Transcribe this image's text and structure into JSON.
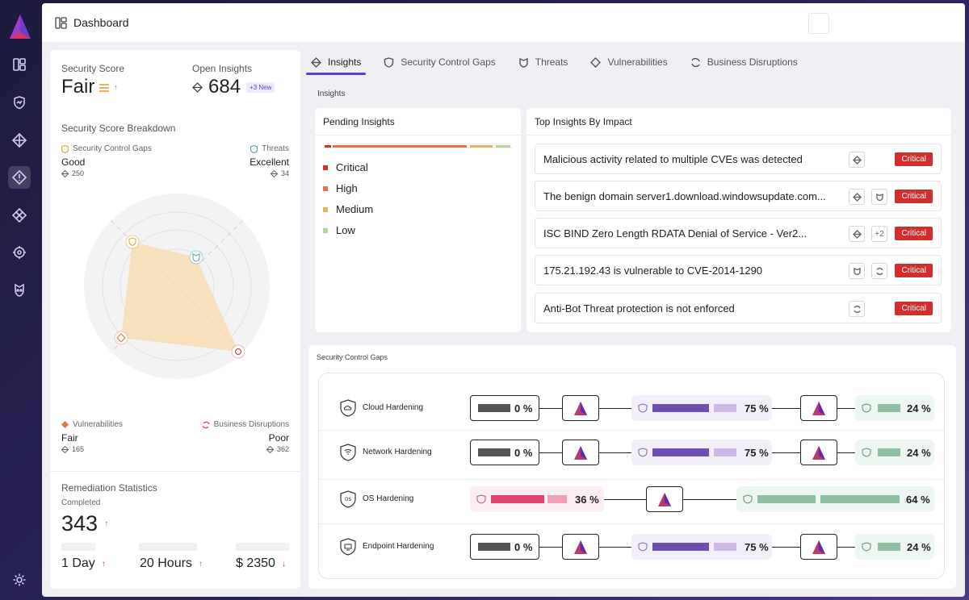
{
  "header": {
    "title": "Dashboard"
  },
  "colors": {
    "accent": "#5b3fd6",
    "critical": "#d12e2e",
    "high": "#e0764a",
    "medium": "#e3b25d",
    "low": "#b7d39c",
    "purple": "#6f4fb3",
    "green": "#8fc0a3",
    "pink": "#e0436f"
  },
  "score": {
    "label": "Security Score",
    "value": "Fair",
    "open_label": "Open Insights",
    "open_value": "684",
    "new_badge": "+3 New",
    "breakdown_title": "Security Score Breakdown"
  },
  "breakdown": [
    {
      "category": "Security Control Gaps",
      "rating": "Good",
      "count": "250",
      "icon": "shield-icon"
    },
    {
      "category": "Threats",
      "rating": "Excellent",
      "count": "34",
      "icon": "alien-icon"
    },
    {
      "category": "Vulnerabilities",
      "rating": "Fair",
      "count": "165",
      "icon": "diamond-icon"
    },
    {
      "category": "Business Disruptions",
      "rating": "Poor",
      "count": "362",
      "icon": "disruption-icon"
    }
  ],
  "remediation": {
    "title": "Remediation Statistics",
    "completed_label": "Completed",
    "completed": "343",
    "day": "1 Day",
    "hours": "20 Hours",
    "cost": "$ 2350"
  },
  "tabs": [
    "Insights",
    "Security Control Gaps",
    "Threats",
    "Vulnerabilities",
    "Business Disruptions"
  ],
  "insights_section": "Insights",
  "pending": {
    "title": "Pending Insights",
    "levels": [
      "Critical",
      "High",
      "Medium",
      "Low"
    ]
  },
  "top": {
    "title": "Top Insights By Impact",
    "rows": [
      {
        "text": "Malicious activity related to multiple CVEs was detected",
        "badge": "Critical"
      },
      {
        "text": "The benign domain server1.download.windowsupdate.com...",
        "badge": "Critical"
      },
      {
        "text": "ISC BIND Zero Length RDATA Denial of Service - Ver2...",
        "badge": "Critical",
        "extra": "+2"
      },
      {
        "text": "175.21.192.43 is vulnerable to CVE-2014-1290",
        "badge": "Critical"
      },
      {
        "text": "Anti-Bot Threat protection is not enforced",
        "badge": "Critical"
      }
    ]
  },
  "gaps": {
    "title": "Security Control Gaps",
    "rows": [
      {
        "name": "Cloud Hardening",
        "p1": "0",
        "p2": "75",
        "p3": "24",
        "unit": "%"
      },
      {
        "name": "Network Hardening",
        "p1": "0",
        "p2": "75",
        "p3": "24",
        "unit": "%"
      },
      {
        "name": "OS Hardening",
        "p1": "36",
        "p2": "64",
        "unit": "%"
      },
      {
        "name": "Endpoint Hardening",
        "p1": "0",
        "p2": "75",
        "p3": "24",
        "unit": "%"
      }
    ]
  }
}
